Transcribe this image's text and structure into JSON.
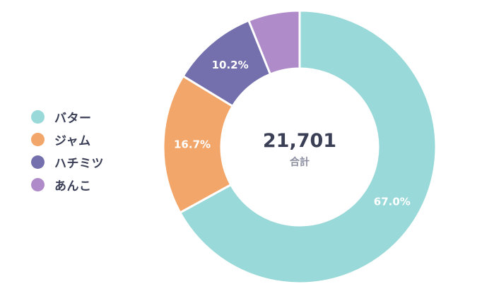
{
  "chart_data": {
    "type": "donut",
    "categories": [
      "バター",
      "ジャム",
      "ハチミツ",
      "あんこ"
    ],
    "values": [
      67.0,
      16.7,
      10.2,
      6.1
    ],
    "value_labels": [
      "67.0%",
      "16.7%",
      "10.2%",
      ""
    ],
    "colors": [
      "#9ad9d9",
      "#f2a66a",
      "#7470ad",
      "#b08bc9"
    ],
    "center_total": "21,701",
    "center_label": "合計",
    "legend_position": "left"
  }
}
